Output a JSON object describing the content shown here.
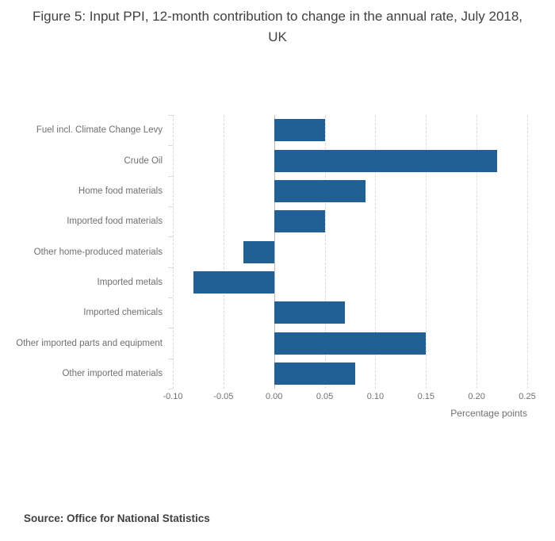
{
  "title": "Figure 5: Input PPI, 12-month contribution to change in the annual rate, July 2018, UK",
  "source_note": "Source: Office for National Statistics",
  "chart_data": {
    "type": "bar",
    "orientation": "horizontal",
    "title": "Figure 5: Input PPI, 12-month contribution to change in the annual rate, July 2018, UK",
    "categories": [
      "Fuel incl. Climate Change Levy",
      "Crude Oil",
      "Home food materials",
      "Imported food materials",
      "Other home-produced materials",
      "Imported metals",
      "Imported chemicals",
      "Other imported parts and equipment",
      "Other imported materials"
    ],
    "values": [
      0.05,
      0.22,
      0.09,
      0.05,
      -0.03,
      -0.08,
      0.07,
      0.15,
      0.08
    ],
    "xlabel": "Percentage points",
    "ylabel": "",
    "xlim": [
      -0.1,
      0.25
    ],
    "xticks": [
      -0.1,
      -0.05,
      0.0,
      0.05,
      0.1,
      0.15,
      0.2,
      0.25
    ],
    "xtick_labels": [
      "-0.10",
      "-0.05",
      "0.00",
      "0.05",
      "0.10",
      "0.15",
      "0.20",
      "0.25"
    ],
    "bar_color": "#206095",
    "grid": "vertical-dashed",
    "legend": "none"
  }
}
